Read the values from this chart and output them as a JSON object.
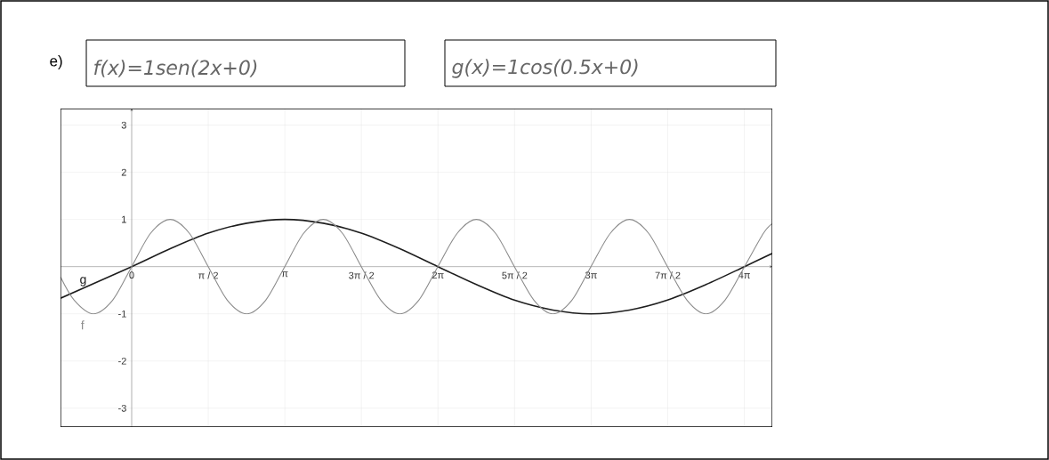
{
  "chart_data": {
    "type": "line",
    "title": "e)",
    "annotations": [
      "f(x)=1sen(2x+0)",
      "g(x)=1cos(0.5x+0)"
    ],
    "xlim": [
      -1.46,
      13.14
    ],
    "ylim": [
      -3.4,
      3.35
    ],
    "xticks": [
      0,
      {
        "value": 1.571,
        "label": "π / 2"
      },
      {
        "value": 3.142,
        "label": "π"
      },
      {
        "value": 4.712,
        "label": "3π / 2"
      },
      {
        "value": 6.283,
        "label": "2π"
      },
      {
        "value": 7.854,
        "label": "5π / 2"
      },
      {
        "value": 9.425,
        "label": "3π"
      },
      {
        "value": 10.996,
        "label": "7π / 2"
      },
      {
        "value": 12.566,
        "label": "4π"
      }
    ],
    "yticks": [
      -3,
      -2,
      -1,
      1,
      2,
      3
    ],
    "grid": true,
    "marker": "none",
    "series": [
      {
        "name": "g",
        "color": "#1e1e1e",
        "x": [
          -1.46,
          0,
          0.79,
          1.57,
          2.36,
          3.14,
          3.93,
          4.71,
          5.5,
          6.28,
          7.07,
          7.85,
          8.64,
          9.42,
          10.21,
          10.99,
          11.78,
          12.57,
          13.14
        ],
        "values": [
          -0.67,
          0,
          0.38,
          0.71,
          0.92,
          1,
          0.92,
          0.71,
          0.38,
          0,
          -0.38,
          -0.71,
          -0.92,
          -1,
          -0.92,
          -0.71,
          -0.38,
          0,
          0.28
        ]
      },
      {
        "name": "f",
        "color": "#8c8c8c",
        "x": [
          -1.46,
          -1.18,
          -0.79,
          -0.39,
          0,
          0.39,
          0.79,
          1.18,
          1.57,
          1.96,
          2.36,
          2.75,
          3.14,
          3.53,
          3.93,
          4.32,
          4.71,
          5.11,
          5.5,
          5.89,
          6.28,
          6.68,
          7.07,
          7.46,
          7.85,
          8.25,
          8.64,
          9.03,
          9.42,
          9.82,
          10.21,
          10.6,
          10.99,
          11.39,
          11.78,
          12.17,
          12.57,
          12.96,
          13.14
        ],
        "values": [
          -0.22,
          -0.71,
          -1,
          -0.71,
          0,
          0.71,
          1,
          0.71,
          0,
          -0.71,
          -1,
          -0.71,
          0,
          0.71,
          1,
          0.71,
          0,
          -0.71,
          -1,
          -0.71,
          0,
          0.71,
          1,
          0.71,
          0,
          -0.71,
          -1,
          -0.71,
          0,
          0.71,
          1,
          0.71,
          0,
          -0.71,
          -1,
          -0.71,
          0,
          0.71,
          0.91
        ]
      }
    ]
  }
}
